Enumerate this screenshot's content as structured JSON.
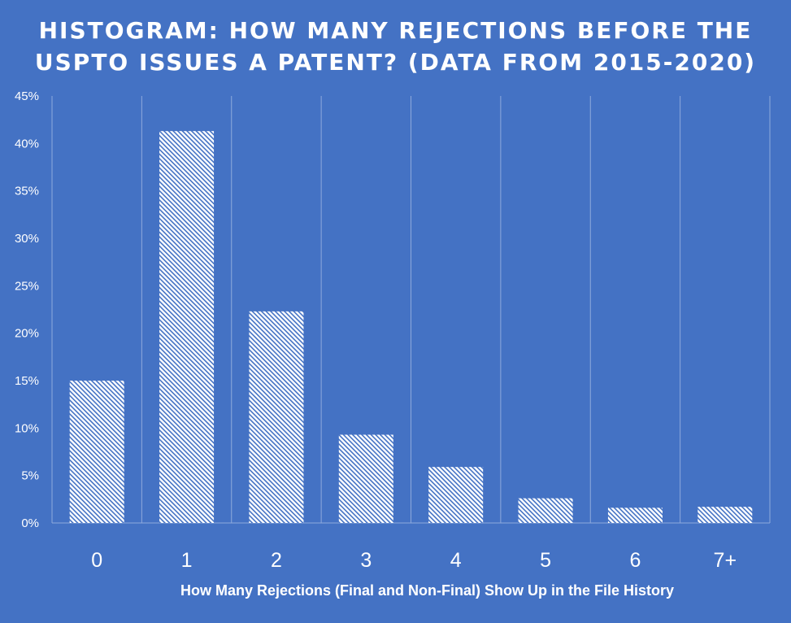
{
  "chart_data": {
    "type": "bar",
    "title_lines": [
      "HISTOGRAM: HOW MANY REJECTIONS BEFORE THE",
      "USPTO ISSUES A PATENT? (DATA FROM 2015-2020)"
    ],
    "xlabel": "How Many Rejections (Final and Non-Final) Show Up in the File History",
    "ylabel": "",
    "categories": [
      "0",
      "1",
      "2",
      "3",
      "4",
      "5",
      "6",
      "7+"
    ],
    "values": [
      15.0,
      41.3,
      22.3,
      9.3,
      5.9,
      2.6,
      1.6,
      1.7
    ],
    "ylim": [
      0,
      45
    ],
    "yticks": [
      "0%",
      "5%",
      "10%",
      "15%",
      "20%",
      "25%",
      "30%",
      "35%",
      "40%",
      "45%"
    ],
    "grid": "vertical",
    "legend": "none",
    "colors": {
      "background": "#4472C4",
      "bar_fill": "#ffffff",
      "bar_pattern": "#4472C4",
      "text": "#ffffff"
    }
  }
}
